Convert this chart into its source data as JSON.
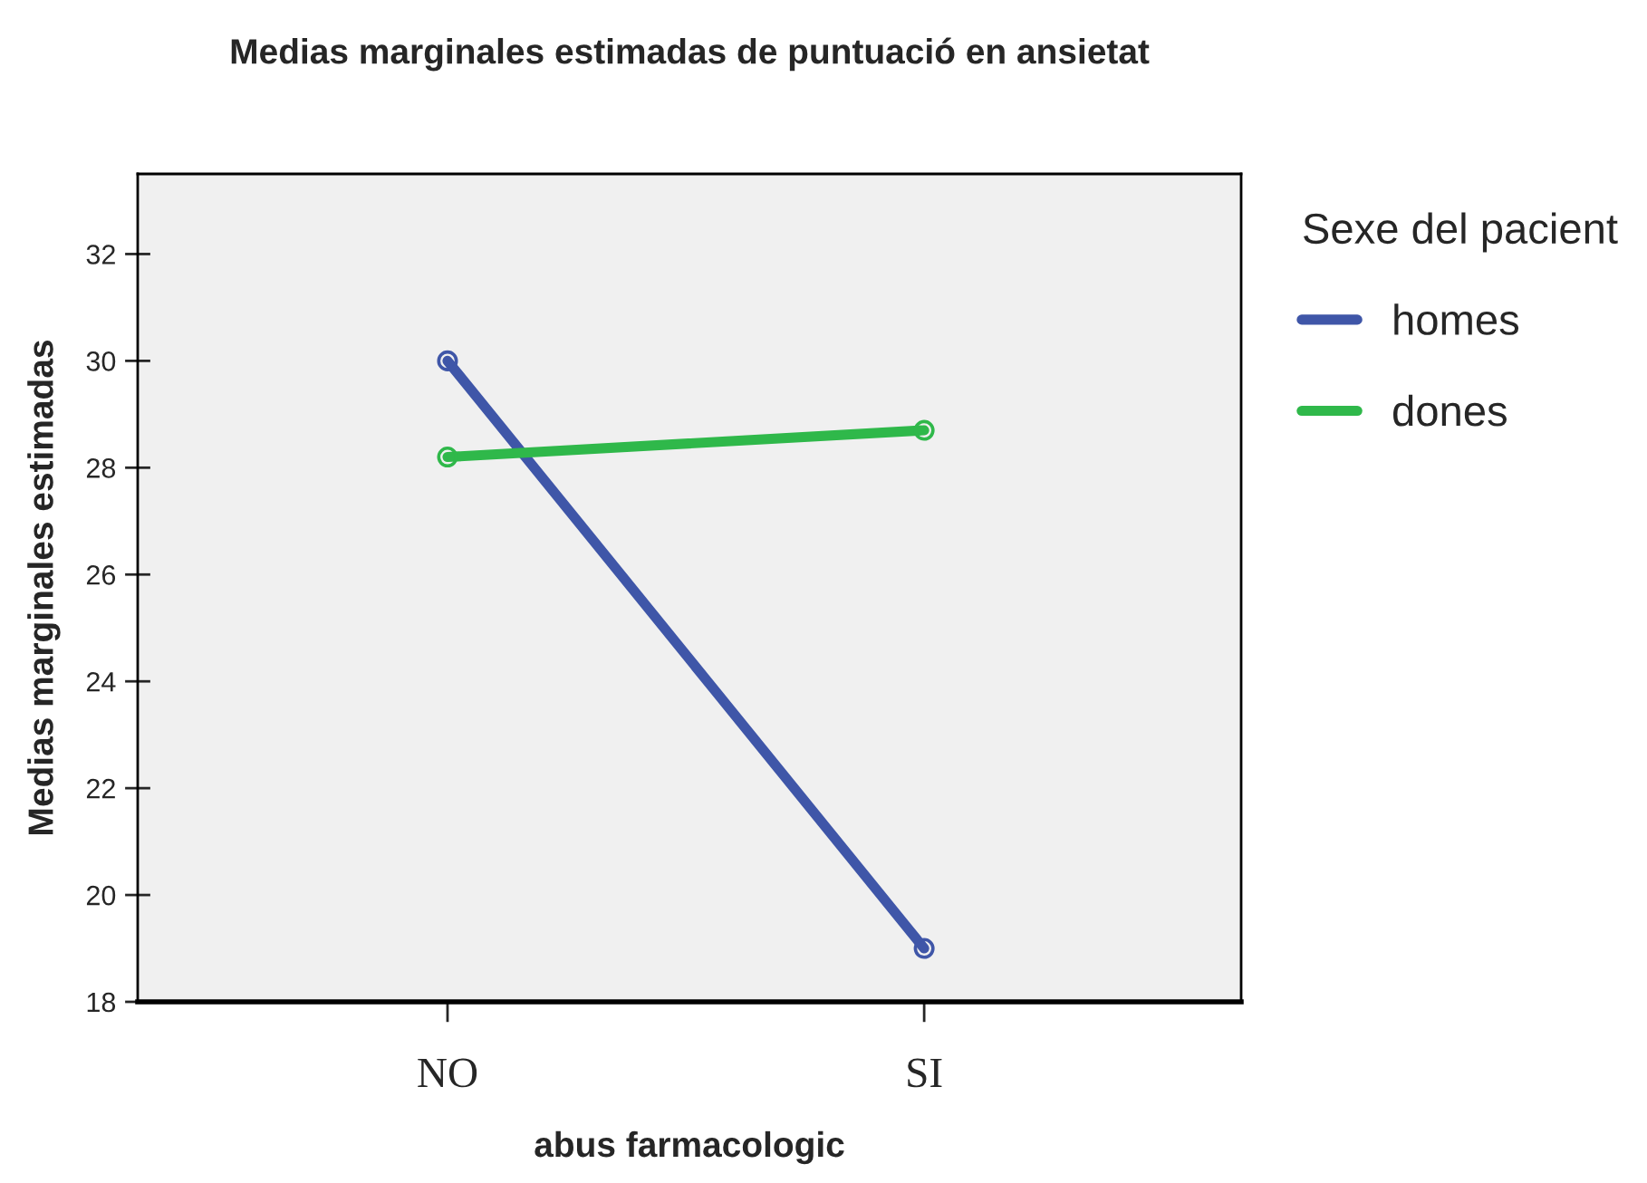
{
  "chart_data": {
    "type": "line",
    "title": "Medias marginales estimadas de puntuació en ansietat",
    "xlabel": "abus farmacologic",
    "ylabel": "Medias marginales estimadas",
    "legend_title": "Sexe del pacient",
    "categories": [
      "NO",
      "SI"
    ],
    "series": [
      {
        "name": "homes",
        "color": "#3f56a8",
        "values": [
          30.0,
          19.0
        ]
      },
      {
        "name": "dones",
        "color": "#2fb84a",
        "values": [
          28.2,
          28.7
        ]
      }
    ],
    "ylim": [
      18,
      33.5
    ],
    "yticks": [
      18,
      20,
      22,
      24,
      26,
      28,
      30,
      32
    ],
    "grid": false,
    "legend": "right",
    "marker": "circle",
    "line_style": "solid"
  }
}
